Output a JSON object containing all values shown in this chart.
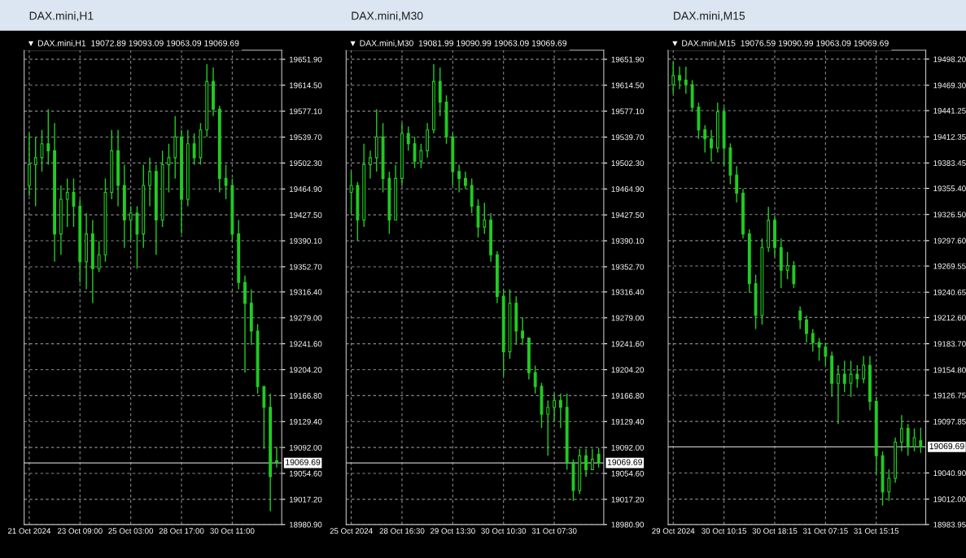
{
  "chart_data": [
    {
      "type": "candlestick",
      "title": "DAX.mini,H1",
      "annotations": [
        "▼ DAX.mini,H1  19072.89 19093.09 19063.09 19069.69"
      ],
      "color": "#22cc22",
      "grid": true,
      "categories": [
        "21 Oct 2024",
        null,
        null,
        null,
        null,
        null,
        null,
        null,
        "23 Oct 09:00",
        null,
        null,
        null,
        null,
        null,
        null,
        null,
        "25 Oct 03:00",
        null,
        null,
        null,
        null,
        null,
        null,
        null,
        "28 Oct 17:00",
        null,
        null,
        null,
        null,
        null,
        null,
        null,
        "30 Oct 11:00",
        null,
        null,
        null,
        null,
        null,
        null,
        null
      ],
      "ohlc": [
        [
          19470,
          19545,
          19455,
          19500
        ],
        [
          19500,
          19540,
          19440,
          19510
        ],
        [
          19510,
          19550,
          19490,
          19530
        ],
        [
          19530,
          19580,
          19500,
          19520
        ],
        [
          19520,
          19560,
          19360,
          19400
        ],
        [
          19400,
          19470,
          19370,
          19450
        ],
        [
          19450,
          19480,
          19410,
          19460
        ],
        [
          19460,
          19480,
          19410,
          19440
        ],
        [
          19440,
          19450,
          19330,
          19360
        ],
        [
          19360,
          19430,
          19320,
          19400
        ],
        [
          19400,
          19420,
          19300,
          19350
        ],
        [
          19350,
          19390,
          19345,
          19370
        ],
        [
          19370,
          19480,
          19360,
          19460
        ],
        [
          19460,
          19550,
          19450,
          19520
        ],
        [
          19520,
          19550,
          19440,
          19470
        ],
        [
          19470,
          19500,
          19380,
          19420
        ],
        [
          19420,
          19440,
          19390,
          19430
        ],
        [
          19430,
          19440,
          19350,
          19400
        ],
        [
          19400,
          19500,
          19380,
          19470
        ],
        [
          19470,
          19510,
          19440,
          19490
        ],
        [
          19490,
          19500,
          19370,
          19420
        ],
        [
          19420,
          19520,
          19410,
          19500
        ],
        [
          19500,
          19530,
          19460,
          19510
        ],
        [
          19510,
          19570,
          19480,
          19540
        ],
        [
          19540,
          19550,
          19400,
          19450
        ],
        [
          19450,
          19550,
          19440,
          19530
        ],
        [
          19530,
          19545,
          19500,
          19510
        ],
        [
          19510,
          19560,
          19500,
          19550
        ],
        [
          19550,
          19645,
          19540,
          19620
        ],
        [
          19620,
          19640,
          19570,
          19580
        ],
        [
          19580,
          19585,
          19460,
          19480
        ],
        [
          19480,
          19500,
          19450,
          19470
        ],
        [
          19470,
          19480,
          19390,
          19400
        ],
        [
          19400,
          19420,
          19320,
          19330
        ],
        [
          19330,
          19340,
          19200,
          19300
        ],
        [
          19300,
          19320,
          19240,
          19260
        ],
        [
          19260,
          19270,
          19170,
          19180
        ],
        [
          19180,
          19180,
          19090,
          19150
        ],
        [
          19150,
          19170,
          19000,
          19050
        ],
        [
          19072.89,
          19093.09,
          19063.09,
          19069.69
        ]
      ],
      "ylim": [
        18980.9,
        19665
      ],
      "yticks": [
        {
          "value": 19651.9,
          "label": "19651.90"
        },
        {
          "value": 19614.5,
          "label": "19614.50"
        },
        {
          "value": 19577.1,
          "label": "19577.10"
        },
        {
          "value": 19539.7,
          "label": "19539.70"
        },
        {
          "value": 19502.3,
          "label": "19502.30"
        },
        {
          "value": 19464.9,
          "label": "19464.90"
        },
        {
          "value": 19427.5,
          "label": "19427.50"
        },
        {
          "value": 19390.1,
          "label": "19390.10"
        },
        {
          "value": 19352.7,
          "label": "19352.70"
        },
        {
          "value": 19316.4,
          "label": "19316.40"
        },
        {
          "value": 19279.0,
          "label": "19279.00"
        },
        {
          "value": 19241.6,
          "label": "19241.60"
        },
        {
          "value": 19204.2,
          "label": "19204.20"
        },
        {
          "value": 19166.8,
          "label": "19166.80"
        },
        {
          "value": 19129.4,
          "label": "19129.40"
        },
        {
          "value": 19092.0,
          "label": "19092.00"
        },
        {
          "value": 19054.6,
          "label": "19054.60"
        },
        {
          "value": 19017.2,
          "label": "19017.20"
        },
        {
          "value": 18980.9,
          "label": "18980.90"
        }
      ],
      "ref_lines": [
        {
          "axis": "y",
          "value": 19069.69,
          "label": "19069.69",
          "color": "#c0c0c0"
        }
      ]
    },
    {
      "type": "candlestick",
      "title": "DAX.mini,M30",
      "annotations": [
        "▼ DAX.mini,M30  19081.99 19090.99 19063.09 19069.69"
      ],
      "color": "#22cc22",
      "grid": true,
      "categories": [
        "25 Oct 2024",
        null,
        null,
        null,
        null,
        null,
        null,
        null,
        "28 Oct 16:30",
        null,
        null,
        null,
        null,
        null,
        null,
        null,
        "29 Oct 13:30",
        null,
        null,
        null,
        null,
        null,
        null,
        null,
        "30 Oct 10:30",
        null,
        null,
        null,
        null,
        null,
        null,
        null,
        "31 Oct 07:30",
        null,
        null,
        null,
        null,
        null,
        null,
        null
      ],
      "ohlc": [
        [
          19460,
          19490,
          19430,
          19470
        ],
        [
          19470,
          19475,
          19390,
          19420
        ],
        [
          19420,
          19530,
          19410,
          19500
        ],
        [
          19500,
          19520,
          19480,
          19510
        ],
        [
          19510,
          19580,
          19490,
          19540
        ],
        [
          19540,
          19560,
          19460,
          19480
        ],
        [
          19480,
          19490,
          19400,
          19420
        ],
        [
          19420,
          19500,
          19420,
          19480
        ],
        [
          19480,
          19560,
          19470,
          19545
        ],
        [
          19545,
          19555,
          19520,
          19530
        ],
        [
          19530,
          19540,
          19495,
          19505
        ],
        [
          19505,
          19530,
          19495,
          19520
        ],
        [
          19520,
          19560,
          19510,
          19550
        ],
        [
          19550,
          19645,
          19545,
          19620
        ],
        [
          19620,
          19640,
          19570,
          19590
        ],
        [
          19590,
          19600,
          19530,
          19540
        ],
        [
          19540,
          19545,
          19470,
          19490
        ],
        [
          19490,
          19500,
          19460,
          19480
        ],
        [
          19480,
          19490,
          19465,
          19470
        ],
        [
          19470,
          19480,
          19430,
          19440
        ],
        [
          19440,
          19450,
          19395,
          19410
        ],
        [
          19410,
          19445,
          19400,
          19420
        ],
        [
          19420,
          19430,
          19360,
          19370
        ],
        [
          19370,
          19375,
          19300,
          19310
        ],
        [
          19310,
          19320,
          19195,
          19230
        ],
        [
          19230,
          19320,
          19220,
          19300
        ],
        [
          19300,
          19310,
          19240,
          19260
        ],
        [
          19260,
          19280,
          19240,
          19250
        ],
        [
          19250,
          19250,
          19190,
          19200
        ],
        [
          19200,
          19210,
          19170,
          19180
        ],
        [
          19180,
          19185,
          19120,
          19140
        ],
        [
          19140,
          19160,
          19080,
          19150
        ],
        [
          19150,
          19170,
          19130,
          19160
        ],
        [
          19160,
          19170,
          19120,
          19150
        ],
        [
          19150,
          19170,
          19060,
          19070
        ],
        [
          19070,
          19075,
          19015,
          19030
        ],
        [
          19030,
          19090,
          19025,
          19080
        ],
        [
          19080,
          19090,
          19050,
          19060
        ],
        [
          19060,
          19090,
          19060,
          19075
        ],
        [
          19081.99,
          19090.99,
          19063.09,
          19069.69
        ]
      ],
      "ylim": [
        18980.9,
        19665
      ],
      "yticks": [
        {
          "value": 19651.9,
          "label": "19651.90"
        },
        {
          "value": 19614.5,
          "label": "19614.50"
        },
        {
          "value": 19577.1,
          "label": "19577.10"
        },
        {
          "value": 19539.7,
          "label": "19539.70"
        },
        {
          "value": 19502.3,
          "label": "19502.30"
        },
        {
          "value": 19464.9,
          "label": "19464.90"
        },
        {
          "value": 19427.5,
          "label": "19427.50"
        },
        {
          "value": 19390.1,
          "label": "19390.10"
        },
        {
          "value": 19352.7,
          "label": "19352.70"
        },
        {
          "value": 19316.4,
          "label": "19316.40"
        },
        {
          "value": 19279.0,
          "label": "19279.00"
        },
        {
          "value": 19241.6,
          "label": "19241.60"
        },
        {
          "value": 19204.2,
          "label": "19204.20"
        },
        {
          "value": 19166.8,
          "label": "19166.80"
        },
        {
          "value": 19129.4,
          "label": "19129.40"
        },
        {
          "value": 19092.0,
          "label": "19092.00"
        },
        {
          "value": 19054.6,
          "label": "19054.60"
        },
        {
          "value": 19017.2,
          "label": "19017.20"
        },
        {
          "value": 18980.9,
          "label": "18980.90"
        }
      ],
      "ref_lines": [
        {
          "axis": "y",
          "value": 19069.69,
          "label": "19069.69",
          "color": "#c0c0c0"
        }
      ]
    },
    {
      "type": "candlestick",
      "title": "DAX.mini,M15",
      "annotations": [
        "▼ DAX.mini,M15  19076.59 19090.99 19063.09 19069.69"
      ],
      "color": "#22cc22",
      "grid": true,
      "categories": [
        "29 Oct 2024",
        null,
        null,
        null,
        null,
        null,
        null,
        null,
        "30 Oct 10:15",
        null,
        null,
        null,
        null,
        null,
        null,
        null,
        "30 Oct 18:15",
        null,
        null,
        null,
        null,
        null,
        null,
        null,
        "31 Oct 07:15",
        null,
        null,
        null,
        null,
        null,
        null,
        null,
        "31 Oct 15:15",
        null,
        null,
        null,
        null,
        null,
        null,
        null
      ],
      "ohlc": [
        [
          19470,
          19495,
          19460,
          19480
        ],
        [
          19480,
          19490,
          19465,
          19475
        ],
        [
          19475,
          19490,
          19460,
          19470
        ],
        [
          19470,
          19475,
          19440,
          19445
        ],
        [
          19445,
          19450,
          19410,
          19420
        ],
        [
          19420,
          19425,
          19395,
          19410
        ],
        [
          19410,
          19420,
          19385,
          19400
        ],
        [
          19400,
          19450,
          19395,
          19440
        ],
        [
          19440,
          19445,
          19380,
          19400
        ],
        [
          19400,
          19405,
          19360,
          19370
        ],
        [
          19370,
          19380,
          19340,
          19350
        ],
        [
          19350,
          19355,
          19300,
          19305
        ],
        [
          19305,
          19310,
          19240,
          19250
        ],
        [
          19250,
          19260,
          19200,
          19215
        ],
        [
          19215,
          19300,
          19205,
          19290
        ],
        [
          19290,
          19335,
          19285,
          19320
        ],
        [
          19320,
          19325,
          19280,
          19290
        ],
        [
          19290,
          19300,
          19245,
          19265
        ],
        [
          19265,
          19285,
          19255,
          19270
        ],
        [
          19270,
          19275,
          19245,
          19250
        ],
        [
          19220,
          19225,
          19200,
          19210
        ],
        [
          19210,
          19215,
          19185,
          19195
        ],
        [
          19195,
          19200,
          19175,
          19185
        ],
        [
          19185,
          19190,
          19165,
          19180
        ],
        [
          19180,
          19185,
          19160,
          19170
        ],
        [
          19170,
          19175,
          19125,
          19140
        ],
        [
          19140,
          19160,
          19095,
          19150
        ],
        [
          19150,
          19165,
          19130,
          19140
        ],
        [
          19140,
          19165,
          19125,
          19150
        ],
        [
          19150,
          19160,
          19135,
          19145
        ],
        [
          19145,
          19170,
          19140,
          19160
        ],
        [
          19160,
          19170,
          19110,
          19120
        ],
        [
          19120,
          19125,
          19040,
          19060
        ],
        [
          19060,
          19065,
          19005,
          19020
        ],
        [
          19020,
          19045,
          19010,
          19035
        ],
        [
          19035,
          19080,
          19030,
          19075
        ],
        [
          19075,
          19105,
          19065,
          19090
        ],
        [
          19090,
          19095,
          19060,
          19070
        ],
        [
          19070,
          19090,
          19065,
          19080
        ],
        [
          19076.59,
          19090.99,
          19063.09,
          19069.69
        ]
      ],
      "ylim": [
        18983.95,
        19508
      ],
      "yticks": [
        {
          "value": 19498.2,
          "label": "19498.20"
        },
        {
          "value": 19469.3,
          "label": "19469.30"
        },
        {
          "value": 19441.25,
          "label": "19441.25"
        },
        {
          "value": 19412.35,
          "label": "19412.35"
        },
        {
          "value": 19383.45,
          "label": "19383.45"
        },
        {
          "value": 19355.4,
          "label": "19355.40"
        },
        {
          "value": 19326.5,
          "label": "19326.50"
        },
        {
          "value": 19297.6,
          "label": "19297.60"
        },
        {
          "value": 19269.55,
          "label": "19269.55"
        },
        {
          "value": 19240.65,
          "label": "19240.65"
        },
        {
          "value": 19212.6,
          "label": "19212.60"
        },
        {
          "value": 19183.7,
          "label": "19183.70"
        },
        {
          "value": 19154.8,
          "label": "19154.80"
        },
        {
          "value": 19126.75,
          "label": "19126.75"
        },
        {
          "value": 19097.85,
          "label": "19097.85"
        },
        {
          "value": 19040.9,
          "label": "19040.90"
        },
        {
          "value": 19012.0,
          "label": "19012.00"
        },
        {
          "value": 18983.95,
          "label": "18983.95"
        }
      ],
      "ref_lines": [
        {
          "axis": "y",
          "value": 19069.69,
          "label": "19069.69",
          "color": "#c0c0c0"
        }
      ]
    }
  ]
}
